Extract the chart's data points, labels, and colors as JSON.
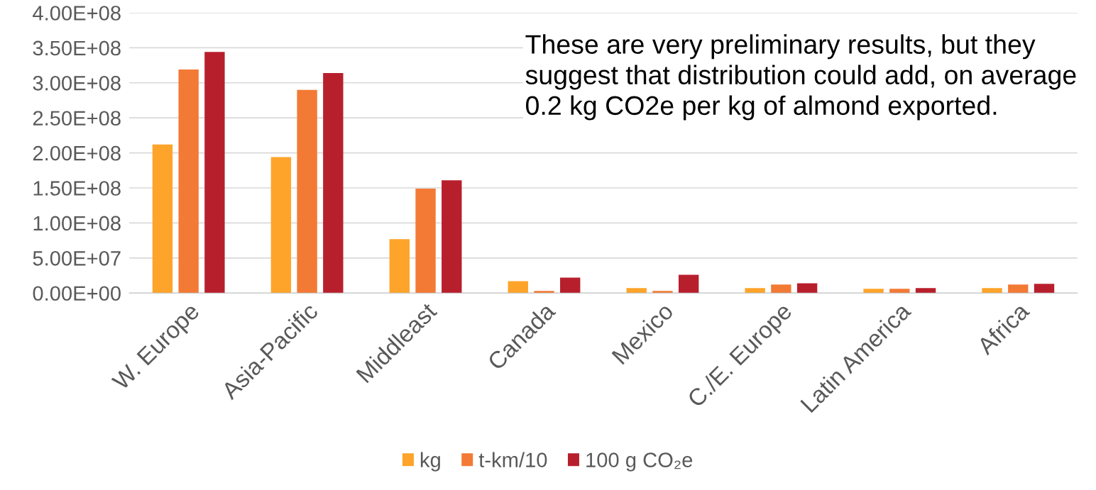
{
  "chart_data": {
    "type": "bar",
    "categories": [
      "W. Europe",
      "Asia-Pacific",
      "Middleast",
      "Canada",
      "Mexico",
      "C./E. Europe",
      "Latin America",
      "Africa"
    ],
    "series": [
      {
        "name": "kg",
        "color": "#fea42a",
        "values": [
          212000000,
          194000000,
          77000000,
          17000000,
          7000000,
          7000000,
          6000000,
          7000000
        ]
      },
      {
        "name": "t-km/10",
        "color": "#f37a34",
        "values": [
          319000000,
          290000000,
          149000000,
          3000000,
          3000000,
          12000000,
          6000000,
          12000000
        ]
      },
      {
        "name": "100 g CO₂e",
        "color": "#b81f2c",
        "values": [
          344000000,
          314000000,
          161000000,
          22000000,
          26000000,
          14000000,
          7000000,
          13000000
        ]
      }
    ],
    "ylim": [
      0,
      400000000
    ],
    "yticks": [
      {
        "value": 0,
        "label": "0.00E+00"
      },
      {
        "value": 50000000,
        "label": "5.00E+07"
      },
      {
        "value": 100000000,
        "label": "1.00E+08"
      },
      {
        "value": 150000000,
        "label": "1.50E+08"
      },
      {
        "value": 200000000,
        "label": "2.00E+08"
      },
      {
        "value": 250000000,
        "label": "2.50E+08"
      },
      {
        "value": 300000000,
        "label": "3.00E+08"
      },
      {
        "value": 350000000,
        "label": "3.50E+08"
      },
      {
        "value": 400000000,
        "label": "4.00E+08"
      }
    ],
    "grid": "y",
    "legend": "bottom",
    "annotations": [
      "These are very preliminary results, but they suggest that distribution could add, on average 0.2 kg CO2e per kg of almond exported."
    ]
  }
}
